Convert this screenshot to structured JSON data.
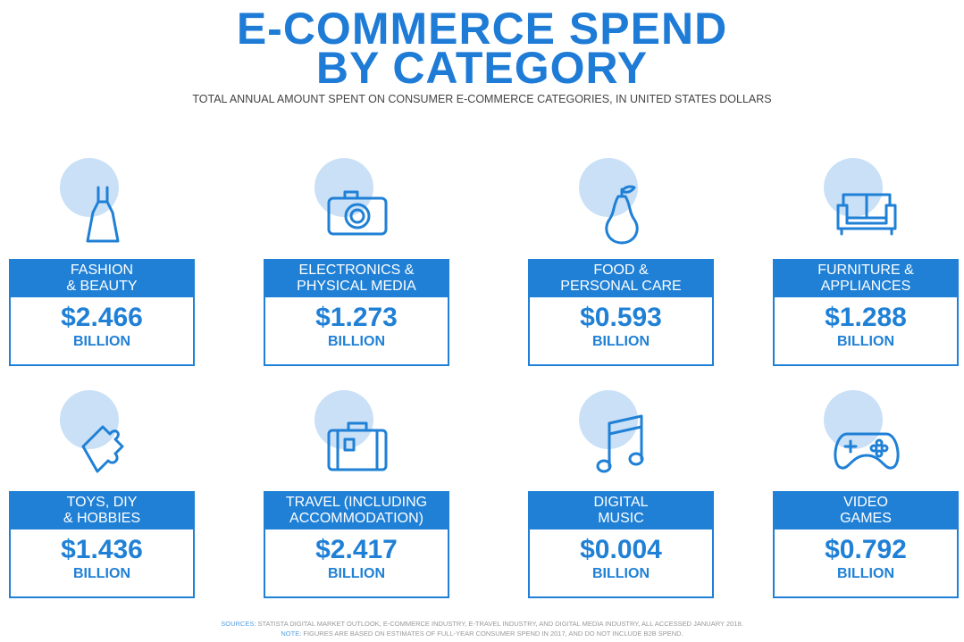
{
  "title": [
    "E-COMMERCE SPEND",
    "BY CATEGORY"
  ],
  "subtitle": "TOTAL ANNUAL AMOUNT SPENT ON CONSUMER E-COMMERCE CATEGORIES, IN UNITED STATES DOLLARS",
  "cards": [
    {
      "label": [
        "FASHION",
        "& BEAUTY"
      ],
      "amount": "$2.466",
      "unit": "BILLION"
    },
    {
      "label": [
        "ELECTRONICS &",
        "PHYSICAL MEDIA"
      ],
      "amount": "$1.273",
      "unit": "BILLION"
    },
    {
      "label": [
        "FOOD &",
        "PERSONAL CARE"
      ],
      "amount": "$0.593",
      "unit": "BILLION"
    },
    {
      "label": [
        "FURNITURE &",
        "APPLIANCES"
      ],
      "amount": "$1.288",
      "unit": "BILLION"
    },
    {
      "label": [
        "TOYS, DIY",
        "& HOBBIES"
      ],
      "amount": "$1.436",
      "unit": "BILLION"
    },
    {
      "label": [
        "TRAVEL (INCLUDING",
        "ACCOMMODATION)"
      ],
      "amount": "$2.417",
      "unit": "BILLION"
    },
    {
      "label": [
        "DIGITAL",
        "MUSIC"
      ],
      "amount": "$0.004",
      "unit": "BILLION"
    },
    {
      "label": [
        "VIDEO",
        "GAMES"
      ],
      "amount": "$0.792",
      "unit": "BILLION"
    }
  ],
  "footer": {
    "sources_label": "SOURCES:",
    "sources": "STATISTA DIGITAL MARKET OUTLOOK, E-COMMERCE INDUSTRY, E-TRAVEL INDUSTRY, AND DIGITAL MEDIA INDUSTRY, ALL ACCESSED JANUARY 2018.",
    "note_label": "NOTE:",
    "note": "FIGURES ARE BASED ON ESTIMATES OF FULL-YEAR CONSUMER SPEND IN 2017, AND DO NOT INCLUDE B2B SPEND."
  }
}
